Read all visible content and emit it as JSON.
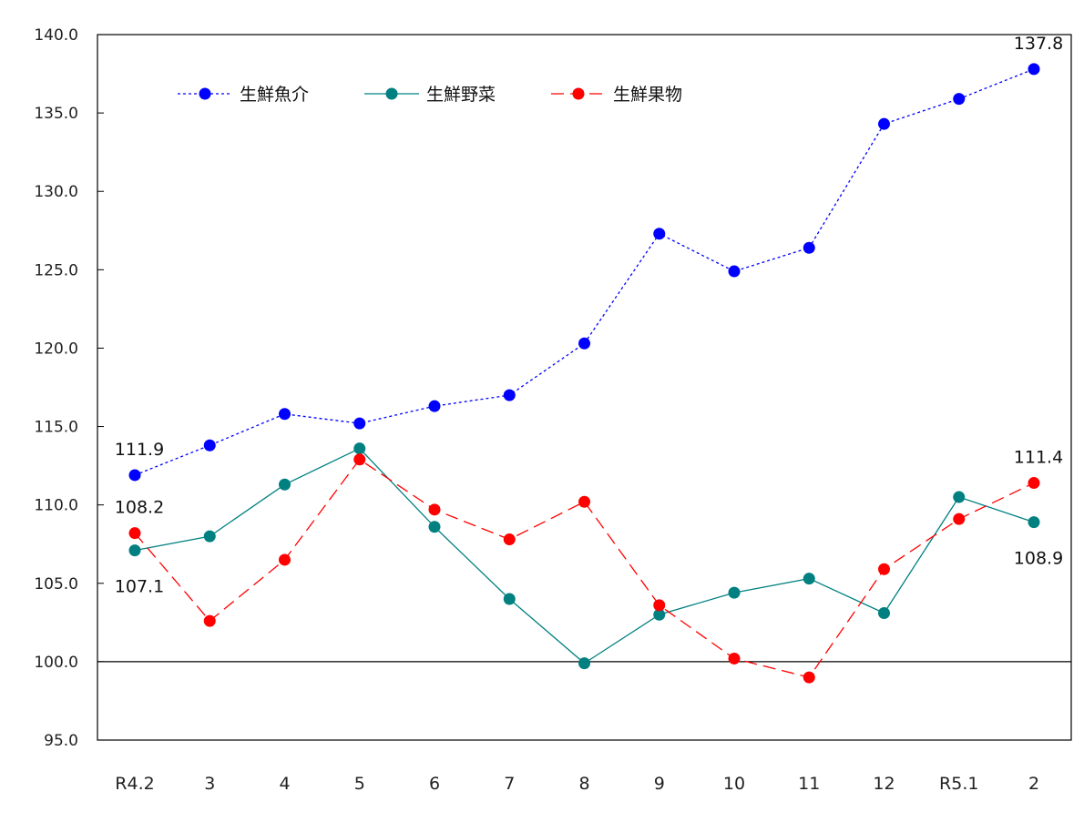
{
  "chart_data": {
    "type": "line",
    "title": "",
    "xlabel": "",
    "ylabel": "",
    "ylim": [
      95.0,
      140.0
    ],
    "yticks": [
      "95.0",
      "100.0",
      "105.0",
      "110.0",
      "115.0",
      "120.0",
      "125.0",
      "130.0",
      "135.0",
      "140.0"
    ],
    "reference_line": 100.0,
    "grid": false,
    "legend_position": "top-left inside plot",
    "categories": [
      "R4.2",
      "3",
      "4",
      "5",
      "6",
      "7",
      "8",
      "9",
      "10",
      "11",
      "12",
      "R5.1",
      "2"
    ],
    "series": [
      {
        "name": "生鮮魚介",
        "color": "#0000ff",
        "line_style": "dotted",
        "values": [
          111.9,
          113.8,
          115.8,
          115.2,
          116.3,
          117.0,
          120.3,
          127.3,
          124.9,
          126.4,
          134.3,
          135.9,
          137.8
        ]
      },
      {
        "name": "生鮮野菜",
        "color": "#008080",
        "line_style": "solid",
        "values": [
          107.1,
          108.0,
          111.3,
          113.6,
          108.6,
          104.0,
          99.9,
          103.0,
          104.4,
          105.3,
          103.1,
          110.5,
          108.9
        ]
      },
      {
        "name": "生鮮果物",
        "color": "#ff0000",
        "line_style": "dashed",
        "values": [
          108.2,
          102.6,
          106.5,
          112.9,
          109.7,
          107.8,
          110.2,
          103.6,
          100.2,
          99.0,
          105.9,
          109.1,
          111.4
        ]
      }
    ],
    "annotations": [
      {
        "text": "111.9",
        "series": "生鮮魚介",
        "category": "R4.2",
        "position": "above"
      },
      {
        "text": "108.2",
        "series": "生鮮果物",
        "category": "R4.2",
        "position": "above"
      },
      {
        "text": "107.1",
        "series": "生鮮野菜",
        "category": "R4.2",
        "position": "below"
      },
      {
        "text": "137.8",
        "series": "生鮮魚介",
        "category": "2",
        "position": "above"
      },
      {
        "text": "111.4",
        "series": "生鮮果物",
        "category": "2",
        "position": "above"
      },
      {
        "text": "108.9",
        "series": "生鮮野菜",
        "category": "2",
        "position": "below"
      }
    ]
  }
}
